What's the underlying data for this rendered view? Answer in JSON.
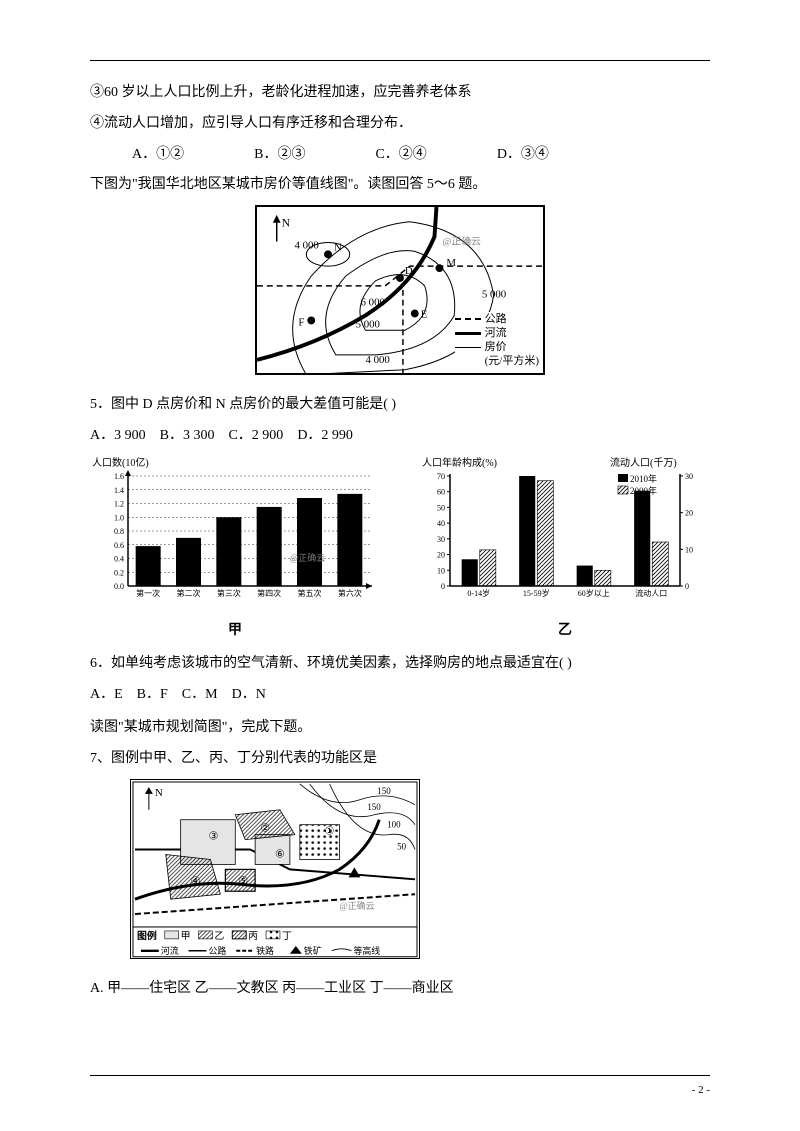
{
  "rule": true,
  "lines": {
    "l1": "③60 岁以上人口比例上升，老龄化进程加速，应完善养老体系",
    "l2": "④流动人口增加，应引导人口有序迁移和合理分布．",
    "optA": "A．①②",
    "optB": "B．②③",
    "optC": "C．②④",
    "optD": "D．③④",
    "l3": "下图为\"我国华北地区某城市房价等值线图\"。读图回答 5～6  题。",
    "q5": "5．图中 D 点房价和 N 点房价的最大差值可能是(      )",
    "q5a": "A．3 900",
    "q5b": "B．3 300",
    "q5c": "C．2 900",
    "q5d": "D．2 990",
    "q6": "6．如单纯考虑该城市的空气清新、环境优美因素，选择购房的地点最适宜在(      )",
    "q6a": "A．E",
    "q6b": "B．F",
    "q6c": "C．M",
    "q6d": "D．N",
    "l4": "读图\"某城市规划简图\"，完成下题。",
    "q7": "7、图例中甲、乙、丙、丁分别代表的功能区是",
    "q7a": "A.  甲——住宅区   乙——文教区   丙——工业区   丁——商业区"
  },
  "map1": {
    "labels": {
      "north": "N",
      "n4000a": "4 000",
      "nlabel": "N",
      "mlabel": "M",
      "dlabel": "D",
      "elabel": "E",
      "flabel": "F",
      "v5000a": "5 000",
      "v6000": "6 000",
      "v5000b": "5 000",
      "v4000b": "4 000",
      "watermark": "@正确云"
    },
    "legend": {
      "road": "公路",
      "river": "河流",
      "price": "房价",
      "unit": "(元/平方米)"
    },
    "colors": {
      "stroke": "#000000",
      "bg": "#ffffff"
    }
  },
  "chart_jia": {
    "type": "bar",
    "title_y": "人口数(10亿)",
    "categories": [
      "第一次",
      "第二次",
      "第三次",
      "第四次",
      "第五次",
      "第六次"
    ],
    "values": [
      0.58,
      0.7,
      1.0,
      1.15,
      1.28,
      1.34
    ],
    "ylim": [
      0,
      1.6
    ],
    "ytick_step": 0.2,
    "bar_color": "#000000",
    "bg": "#ffffff",
    "axis_color": "#000000",
    "label_fontsize": 9,
    "watermark": "@正确云",
    "caption": "甲"
  },
  "chart_yi": {
    "type": "grouped-bar-dual-axis",
    "title_left": "人口年龄构成(%)",
    "title_right": "流动人口(千万)",
    "categories": [
      "0-14岁",
      "15-59岁",
      "60岁以上",
      "流动人口"
    ],
    "series": [
      {
        "name": "2010年",
        "fill": "solid",
        "values_pct": [
          17,
          70,
          13,
          null
        ],
        "values_flow": [
          null,
          null,
          null,
          26
        ]
      },
      {
        "name": "2000年",
        "fill": "hatch",
        "values_pct": [
          23,
          67,
          10,
          null
        ],
        "values_flow": [
          null,
          null,
          null,
          12
        ]
      }
    ],
    "ylim_left": [
      0,
      70
    ],
    "ytick_left": 10,
    "ylim_right": [
      0,
      30
    ],
    "ytick_right": 10,
    "bar_colors": {
      "solid": "#000000",
      "hatch_stroke": "#000000",
      "hatch_bg": "#ffffff"
    },
    "caption": "乙"
  },
  "map2": {
    "labels": {
      "north": "N",
      "c150a": "150",
      "c150b": "150",
      "c100": "100",
      "c50": "50",
      "watermark": "@正确云",
      "nums": [
        "①",
        "②",
        "③",
        "④",
        "⑤",
        "⑥"
      ]
    },
    "legend_title": "图例",
    "legend_items": {
      "jia": "甲",
      "yi": "乙",
      "bing": "丙",
      "ding": "丁",
      "river": "河流",
      "road": "公路",
      "rail": "铁路",
      "iron": "铁矿",
      "contour": "等高线"
    }
  },
  "footer": {
    "page": "- 2 -"
  }
}
